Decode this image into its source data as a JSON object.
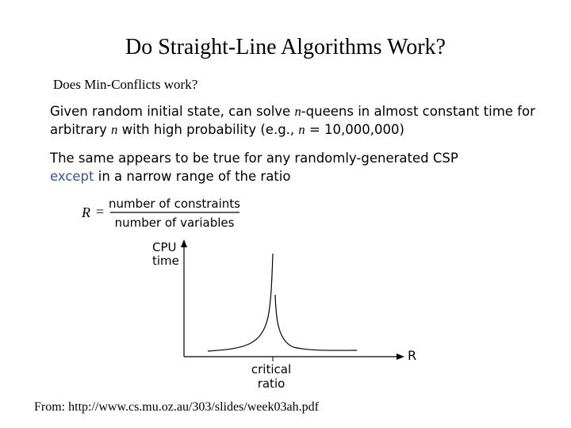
{
  "title": "Do Straight-Line Algorithms Work?",
  "subtitle": "Does Min-Conflicts work?",
  "paragraphs": [
    {
      "lines": [
        [
          "Given random initial state, can solve ",
          "n",
          "-queens in almost constant time for"
        ],
        [
          "arbitrary ",
          "n",
          " with high probability (e.g., ",
          "n",
          " = 10,000,000)"
        ]
      ]
    },
    {
      "lines": [
        [
          "The same appears to be true for any randomly-generated CSP"
        ],
        [
          "except",
          " in a narrow range of the ratio"
        ]
      ]
    }
  ],
  "formula": {
    "lhs": "R",
    "op": "=",
    "numerator": "number of constraints",
    "denominator": "number of variables"
  },
  "plot": {
    "y_label": [
      "CPU",
      "time"
    ],
    "x_label": "R",
    "marker_label": [
      "critical",
      "ratio"
    ]
  },
  "source": "From: http://www.cs.mu.oz.au/303/slides/week03ah.pdf"
}
